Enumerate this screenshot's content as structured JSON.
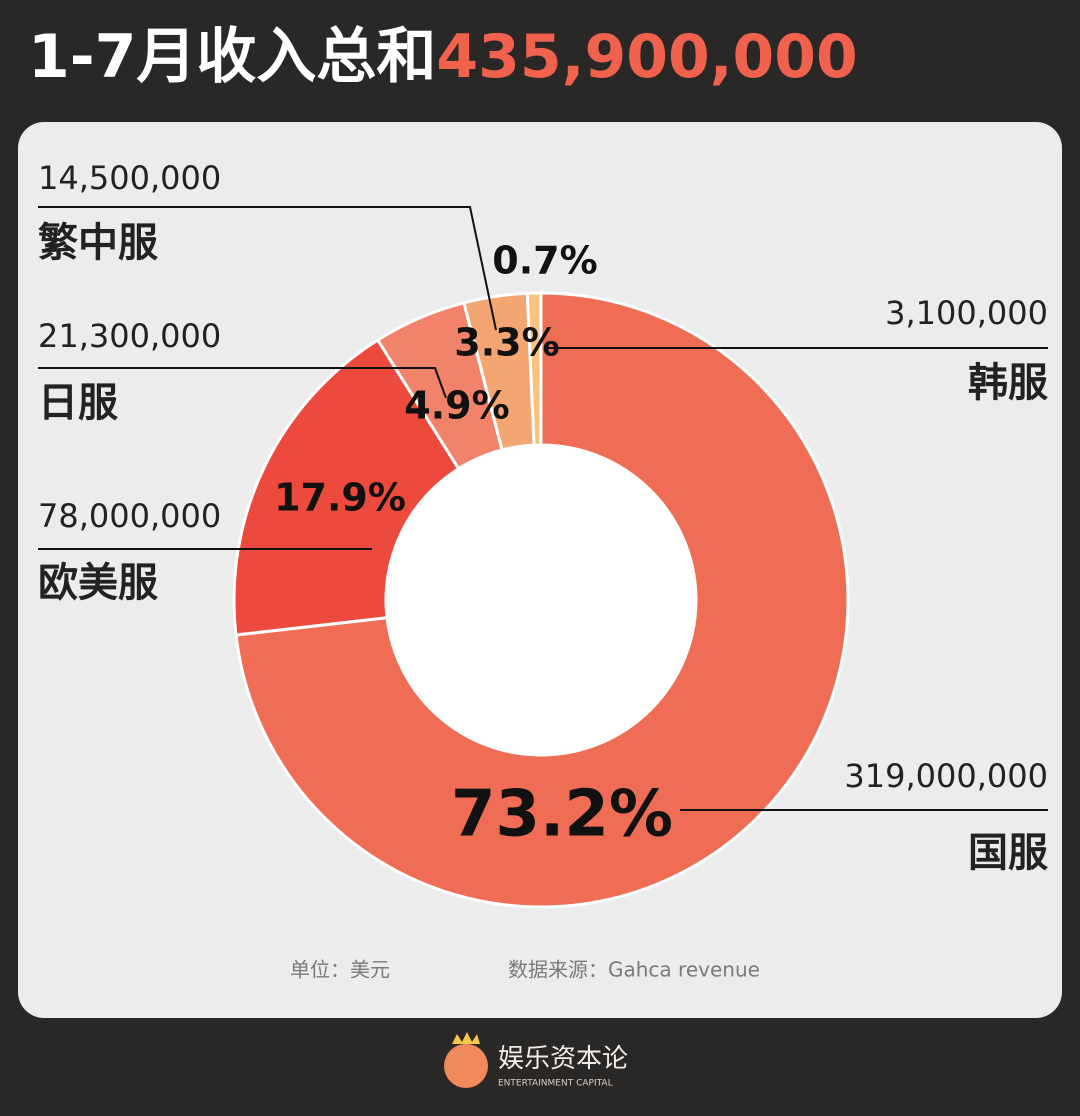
{
  "chart_data": {
    "type": "donut",
    "title": "1-7月收入总和",
    "title_total": "435,900,000",
    "categories": [
      "国服",
      "欧美服",
      "日服",
      "繁中服",
      "韩服"
    ],
    "values": [
      319000000,
      78000000,
      21300000,
      14500000,
      3100000
    ],
    "value_labels": [
      "319,000,000",
      "78,000,000",
      "21,300,000",
      "14,500,000",
      "3,100,000"
    ],
    "shares": [
      73.2,
      17.9,
      4.9,
      3.3,
      0.7
    ],
    "share_labels": [
      "73.2%",
      "17.9%",
      "4.9%",
      "3.3%",
      "0.7%"
    ],
    "colors": [
      "#ef6d55",
      "#ec4a3c",
      "#f0836a",
      "#f4a672",
      "#f7c37f"
    ],
    "unit_note": "单位：美元",
    "source_note": "数据来源：Gahca revenue"
  },
  "footer": {
    "brand": "娱乐资本论",
    "brand_en": "ENTERTAINMENT CAPITAL"
  }
}
